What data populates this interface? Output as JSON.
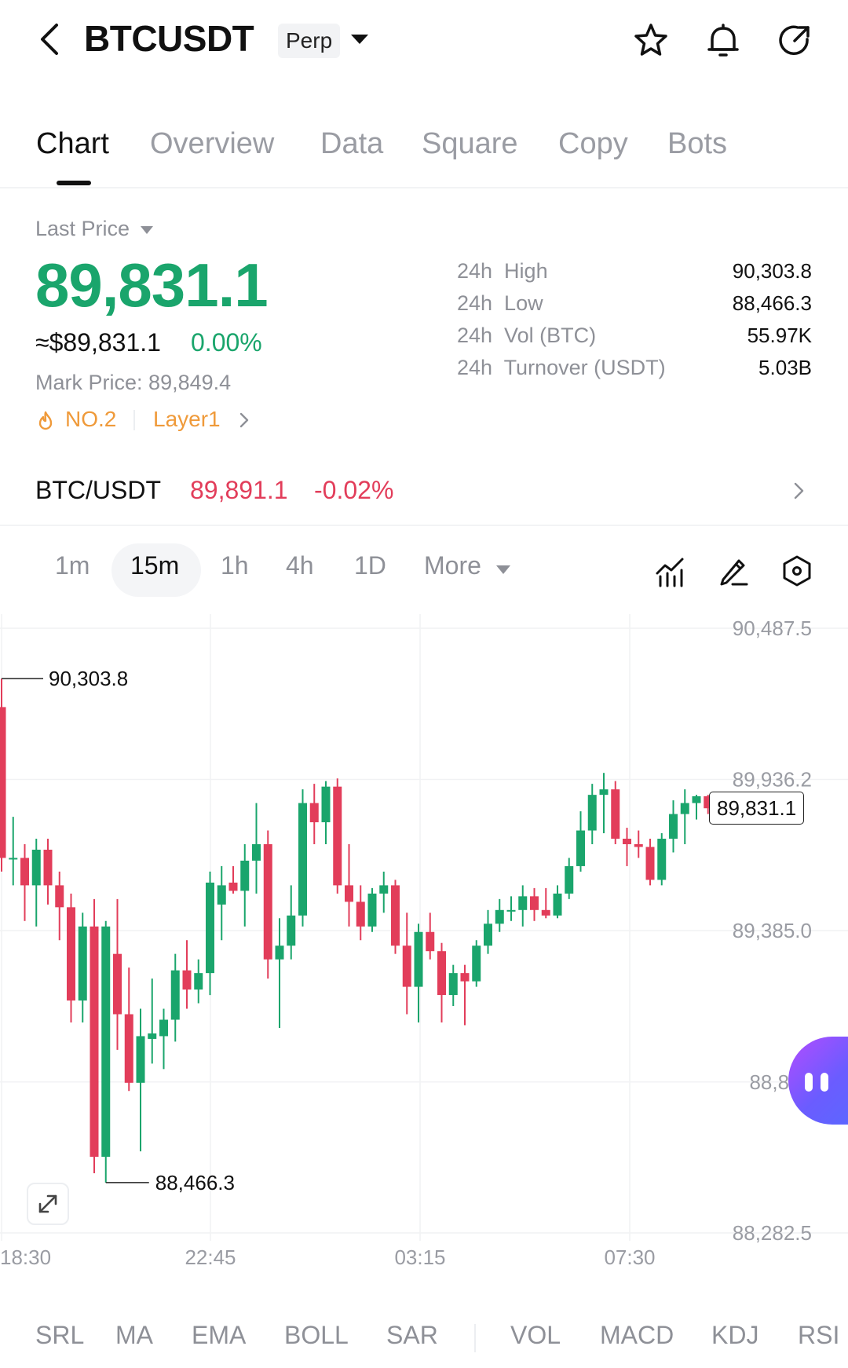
{
  "header": {
    "symbol": "BTCUSDT",
    "contract_type": "Perp",
    "icons": [
      "back-icon",
      "star-icon",
      "bell-icon",
      "share-icon"
    ]
  },
  "tabs": [
    {
      "label": "Chart",
      "active": true
    },
    {
      "label": "Overview",
      "active": false
    },
    {
      "label": "Data",
      "active": false
    },
    {
      "label": "Square",
      "active": false
    },
    {
      "label": "Copy",
      "active": false
    },
    {
      "label": "Bots",
      "active": false
    }
  ],
  "price": {
    "label": "Last Price",
    "last": "89,831.1",
    "fiat": "≈$89,831.1",
    "change": "0.00%",
    "mark_label": "Mark Price:",
    "mark_value": "89,849.4",
    "rank": "NO.2",
    "sector": "Layer1",
    "up_color": "#1aa56c",
    "down_color": "#e23d5a",
    "rank_color": "#ef9a3a"
  },
  "stats": [
    {
      "key": "24h  High",
      "value": "90,303.8"
    },
    {
      "key": "24h  Low",
      "value": "88,466.3"
    },
    {
      "key": "24h  Vol (BTC)",
      "value": "55.97K"
    },
    {
      "key": "24h  Turnover (USDT)",
      "value": "5.03B"
    }
  ],
  "spot": {
    "pair": "BTC/USDT",
    "price": "89,891.1",
    "change": "-0.02%"
  },
  "intervals": [
    {
      "label": "1m",
      "active": false
    },
    {
      "label": "15m",
      "active": true
    },
    {
      "label": "1h",
      "active": false
    },
    {
      "label": "4h",
      "active": false
    },
    {
      "label": "1D",
      "active": false
    },
    {
      "label": "More",
      "active": false
    }
  ],
  "chart_tools": [
    "indicator-icon",
    "draw-pen-icon",
    "settings-hexagon-icon"
  ],
  "chart_data": {
    "type": "candlestick",
    "interval": "15m",
    "y_ticks": [
      "90,487.5",
      "89,936.2",
      "89,385.0",
      "88,833",
      "88,282.5"
    ],
    "x_ticks": [
      "18:30",
      "22:45",
      "03:15",
      "07:30"
    ],
    "high_marker": "90,303.8",
    "low_marker": "88,466.3",
    "last_price_tag": "89,831.1",
    "ylim": [
      88282.5,
      90487.5
    ],
    "candles": [
      {
        "o": 90200,
        "h": 90303.8,
        "l": 89600,
        "c": 89650
      },
      {
        "o": 89650,
        "h": 89800,
        "l": 89550,
        "c": 89650
      },
      {
        "o": 89650,
        "h": 89700,
        "l": 89420,
        "c": 89550
      },
      {
        "o": 89550,
        "h": 89720,
        "l": 89400,
        "c": 89680
      },
      {
        "o": 89680,
        "h": 89720,
        "l": 89480,
        "c": 89550
      },
      {
        "o": 89550,
        "h": 89600,
        "l": 89350,
        "c": 89470
      },
      {
        "o": 89470,
        "h": 89520,
        "l": 89050,
        "c": 89130
      },
      {
        "o": 89130,
        "h": 89450,
        "l": 89050,
        "c": 89400
      },
      {
        "o": 89400,
        "h": 89500,
        "l": 88500,
        "c": 88560
      },
      {
        "o": 88560,
        "h": 89420,
        "l": 88466.3,
        "c": 89400
      },
      {
        "o": 89300,
        "h": 89500,
        "l": 88950,
        "c": 89080
      },
      {
        "o": 89080,
        "h": 89250,
        "l": 88800,
        "c": 88830
      },
      {
        "o": 88830,
        "h": 89100,
        "l": 88580,
        "c": 89000
      },
      {
        "o": 88990,
        "h": 89210,
        "l": 88900,
        "c": 89010
      },
      {
        "o": 89000,
        "h": 89100,
        "l": 88880,
        "c": 89060
      },
      {
        "o": 89060,
        "h": 89300,
        "l": 88980,
        "c": 89240
      },
      {
        "o": 89240,
        "h": 89350,
        "l": 89100,
        "c": 89170
      },
      {
        "o": 89170,
        "h": 89280,
        "l": 89120,
        "c": 89230
      },
      {
        "o": 89230,
        "h": 89600,
        "l": 89150,
        "c": 89560
      },
      {
        "o": 89480,
        "h": 89620,
        "l": 89350,
        "c": 89550
      },
      {
        "o": 89560,
        "h": 89620,
        "l": 89520,
        "c": 89530
      },
      {
        "o": 89530,
        "h": 89700,
        "l": 89400,
        "c": 89640
      },
      {
        "o": 89640,
        "h": 89850,
        "l": 89520,
        "c": 89700
      },
      {
        "o": 89700,
        "h": 89750,
        "l": 89210,
        "c": 89280
      },
      {
        "o": 89280,
        "h": 89430,
        "l": 89030,
        "c": 89330
      },
      {
        "o": 89330,
        "h": 89550,
        "l": 89280,
        "c": 89440
      },
      {
        "o": 89440,
        "h": 89900,
        "l": 89400,
        "c": 89850
      },
      {
        "o": 89850,
        "h": 89920,
        "l": 89700,
        "c": 89780
      },
      {
        "o": 89780,
        "h": 89930,
        "l": 89700,
        "c": 89910
      },
      {
        "o": 89910,
        "h": 89940,
        "l": 89520,
        "c": 89550
      },
      {
        "o": 89550,
        "h": 89700,
        "l": 89400,
        "c": 89490
      },
      {
        "o": 89490,
        "h": 89550,
        "l": 89350,
        "c": 89400
      },
      {
        "o": 89400,
        "h": 89540,
        "l": 89380,
        "c": 89520
      },
      {
        "o": 89520,
        "h": 89600,
        "l": 89450,
        "c": 89550
      },
      {
        "o": 89550,
        "h": 89570,
        "l": 89300,
        "c": 89330
      },
      {
        "o": 89330,
        "h": 89450,
        "l": 89080,
        "c": 89180
      },
      {
        "o": 89180,
        "h": 89410,
        "l": 89050,
        "c": 89380
      },
      {
        "o": 89380,
        "h": 89450,
        "l": 89280,
        "c": 89310
      },
      {
        "o": 89310,
        "h": 89340,
        "l": 89050,
        "c": 89150
      },
      {
        "o": 89150,
        "h": 89260,
        "l": 89110,
        "c": 89230
      },
      {
        "o": 89230,
        "h": 89260,
        "l": 89040,
        "c": 89200
      },
      {
        "o": 89200,
        "h": 89350,
        "l": 89180,
        "c": 89330
      },
      {
        "o": 89330,
        "h": 89460,
        "l": 89300,
        "c": 89410
      },
      {
        "o": 89410,
        "h": 89500,
        "l": 89380,
        "c": 89460
      },
      {
        "o": 89460,
        "h": 89510,
        "l": 89420,
        "c": 89460
      },
      {
        "o": 89460,
        "h": 89550,
        "l": 89400,
        "c": 89510
      },
      {
        "o": 89510,
        "h": 89540,
        "l": 89420,
        "c": 89460
      },
      {
        "o": 89460,
        "h": 89540,
        "l": 89430,
        "c": 89440
      },
      {
        "o": 89440,
        "h": 89550,
        "l": 89430,
        "c": 89520
      },
      {
        "o": 89520,
        "h": 89650,
        "l": 89500,
        "c": 89620
      },
      {
        "o": 89620,
        "h": 89820,
        "l": 89600,
        "c": 89750
      },
      {
        "o": 89750,
        "h": 89920,
        "l": 89700,
        "c": 89880
      },
      {
        "o": 89880,
        "h": 89960,
        "l": 89740,
        "c": 89900
      },
      {
        "o": 89900,
        "h": 89930,
        "l": 89700,
        "c": 89720
      },
      {
        "o": 89720,
        "h": 89760,
        "l": 89620,
        "c": 89700
      },
      {
        "o": 89700,
        "h": 89750,
        "l": 89650,
        "c": 89690
      },
      {
        "o": 89690,
        "h": 89720,
        "l": 89550,
        "c": 89570
      },
      {
        "o": 89570,
        "h": 89740,
        "l": 89550,
        "c": 89720
      },
      {
        "o": 89720,
        "h": 89860,
        "l": 89670,
        "c": 89810
      },
      {
        "o": 89810,
        "h": 89900,
        "l": 89700,
        "c": 89850
      },
      {
        "o": 89850,
        "h": 89880,
        "l": 89790,
        "c": 89875
      },
      {
        "o": 89875,
        "h": 89880,
        "l": 89810,
        "c": 89831.1
      }
    ]
  },
  "indicators": [
    "SRL",
    "MA",
    "EMA",
    "BOLL",
    "SAR",
    "VOL",
    "MACD",
    "KDJ",
    "RSI"
  ]
}
